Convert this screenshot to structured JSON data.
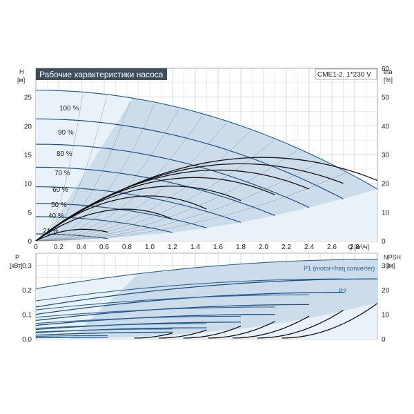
{
  "chart_data": [
    {
      "type": "line",
      "title": "Рабочие характеристики насоса",
      "model": "CME1-2, 1*230 V",
      "xlabel": "Q [м³/ч]",
      "ylabel_top": "H",
      "ylabel_unit": "[м]",
      "y2label_top": "eta",
      "y2label_unit": "[%]",
      "xlim": [
        0,
        3.0
      ],
      "ylim": [
        0,
        30
      ],
      "y2lim": [
        0,
        60
      ],
      "x_ticks": [
        "0",
        "0.2",
        "0.4",
        "0.6",
        "0.8",
        "1.0",
        "1.2",
        "1.4",
        "1.6",
        "1.8",
        "2.0",
        "2.2",
        "2.4",
        "2.6",
        "2.8"
      ],
      "y_ticks": [
        "0",
        "5",
        "10",
        "15",
        "20",
        "25"
      ],
      "y2_ticks": [
        "0",
        "10",
        "20",
        "30",
        "40",
        "50",
        "60"
      ],
      "grid": true,
      "speed_labels": [
        "100 %",
        "90 %",
        "80 %",
        "70 %",
        "60 %",
        "50 %",
        "40 %",
        "21 %"
      ],
      "head_curves": [
        {
          "speed": 100,
          "h0": 26.2,
          "qmax": 3.0,
          "hend": 9.0
        },
        {
          "speed": 90,
          "h0": 21.2,
          "qmax": 2.7,
          "hend": 7.3
        },
        {
          "speed": 80,
          "h0": 16.8,
          "qmax": 2.4,
          "hend": 5.8
        },
        {
          "speed": 70,
          "h0": 12.8,
          "qmax": 2.1,
          "hend": 4.4
        },
        {
          "speed": 60,
          "h0": 9.4,
          "qmax": 1.8,
          "hend": 3.2
        },
        {
          "speed": 50,
          "h0": 6.5,
          "qmax": 1.5,
          "hend": 2.25
        },
        {
          "speed": 40,
          "h0": 4.2,
          "qmax": 1.2,
          "hend": 1.45
        },
        {
          "speed": 21,
          "h0": 1.2,
          "qmax": 0.63,
          "hend": 0.4
        }
      ],
      "eta_curves": [
        {
          "speed": 100,
          "qpeak": 2.0,
          "etapeak": 29.0,
          "qend": 3.0,
          "etaend": 21.0
        },
        {
          "speed": 90,
          "qpeak": 1.8,
          "etapeak": 26.8,
          "qend": 2.7,
          "etaend": 20.0
        },
        {
          "speed": 80,
          "qpeak": 1.6,
          "etapeak": 24.6,
          "qend": 2.4,
          "etaend": 18.0
        },
        {
          "speed": 70,
          "qpeak": 1.4,
          "etapeak": 22.0,
          "qend": 2.1,
          "etaend": 16.0
        },
        {
          "speed": 60,
          "qpeak": 1.2,
          "etapeak": 19.0,
          "qend": 1.8,
          "etaend": 14.0
        },
        {
          "speed": 50,
          "qpeak": 1.0,
          "etapeak": 15.6,
          "qend": 1.5,
          "etaend": 11.0
        },
        {
          "speed": 40,
          "qpeak": 0.8,
          "etapeak": 11.0,
          "qend": 1.2,
          "etaend": 7.5
        },
        {
          "speed": 21,
          "qpeak": 0.42,
          "etapeak": 4.0,
          "qend": 0.63,
          "etaend": 3.0
        }
      ]
    },
    {
      "type": "line",
      "ylabel_top": "P",
      "ylabel_unit": "[кВт]",
      "y2label_top": "NPSH",
      "y2label_unit": "[м]",
      "xlim": [
        0,
        3.0
      ],
      "ylim": [
        0,
        0.35
      ],
      "y2lim": [
        0,
        35
      ],
      "y_ticks": [
        "0.0",
        "0.1",
        "0.2",
        "0.3"
      ],
      "y2_ticks": [
        "0",
        "10",
        "20",
        "30"
      ],
      "series_labels": [
        "P1 (motor+freq.converter)",
        "P2"
      ],
      "power_curves": [
        {
          "speed": 100,
          "p1_0": 0.205,
          "p1_max": 0.325,
          "p2_0": 0.13,
          "p2_max": 0.245,
          "qmax": 3.0
        },
        {
          "speed": 90,
          "p1_0": 0.155,
          "p1_max": 0.245,
          "p2_0": 0.1,
          "p2_max": 0.19,
          "qmax": 2.7
        },
        {
          "speed": 80,
          "p1_0": 0.118,
          "p1_max": 0.18,
          "p2_0": 0.075,
          "p2_max": 0.14,
          "qmax": 2.4
        },
        {
          "speed": 70,
          "p1_0": 0.088,
          "p1_max": 0.13,
          "p2_0": 0.055,
          "p2_max": 0.1,
          "qmax": 2.1
        },
        {
          "speed": 60,
          "p1_0": 0.063,
          "p1_max": 0.092,
          "p2_0": 0.038,
          "p2_max": 0.068,
          "qmax": 1.8
        },
        {
          "speed": 50,
          "p1_0": 0.043,
          "p1_max": 0.062,
          "p2_0": 0.025,
          "p2_max": 0.045,
          "qmax": 1.5
        },
        {
          "speed": 40,
          "p1_0": 0.028,
          "p1_max": 0.04,
          "p2_0": 0.015,
          "p2_max": 0.027,
          "qmax": 1.2
        },
        {
          "speed": 21,
          "p1_0": 0.01,
          "p1_max": 0.013,
          "p2_0": 0.004,
          "p2_max": 0.006,
          "qmax": 0.63
        }
      ],
      "npsh_curves": [
        {
          "speed": 100,
          "qmax": 3.0,
          "npsh_end": 14.5
        },
        {
          "speed": 90,
          "qmax": 2.7,
          "npsh_end": 11.7
        },
        {
          "speed": 80,
          "qmax": 2.4,
          "npsh_end": 9.3
        },
        {
          "speed": 70,
          "qmax": 2.1,
          "npsh_end": 7.1
        },
        {
          "speed": 60,
          "qmax": 1.8,
          "npsh_end": 5.2
        },
        {
          "speed": 50,
          "qmax": 1.5,
          "npsh_end": 3.6
        },
        {
          "speed": 40,
          "qmax": 1.2,
          "npsh_end": 2.3
        }
      ]
    }
  ]
}
